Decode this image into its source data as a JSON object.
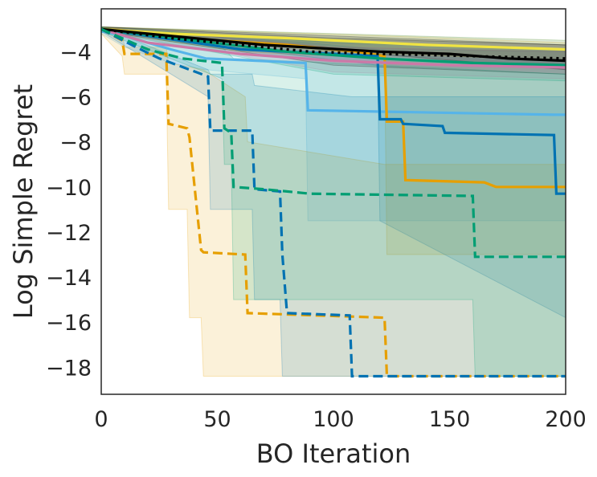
{
  "chart_data": {
    "type": "line",
    "title": "",
    "xlabel": "BO Iteration",
    "ylabel": "Log Simple Regret",
    "xlim": [
      0,
      200
    ],
    "ylim": [
      -19.2,
      -2.1
    ],
    "xticks": [
      0,
      50,
      100,
      150,
      200
    ],
    "yticks": [
      -4,
      -6,
      -8,
      -10,
      -12,
      -14,
      -16,
      -18
    ],
    "x_tick_labels": [
      "0",
      "50",
      "100",
      "150",
      "200"
    ],
    "y_tick_labels": [
      "−4",
      "−6",
      "−8",
      "−10",
      "−12",
      "−14",
      "−16",
      "−18"
    ],
    "grid": false,
    "legend": "none",
    "series": [
      {
        "color": "#56B4E9",
        "style": "solid",
        "points": [
          [
            0,
            -3.1
          ],
          [
            10,
            -3.3
          ],
          [
            30,
            -3.9
          ],
          [
            45,
            -4.3
          ],
          [
            88,
            -4.5
          ],
          [
            89,
            -6.6
          ],
          [
            195,
            -6.8
          ],
          [
            200,
            -6.8
          ]
        ],
        "band_low": [
          [
            0,
            -3.2
          ],
          [
            10,
            -3.8
          ],
          [
            30,
            -4.5
          ],
          [
            45,
            -4.8
          ],
          [
            88,
            -5.2
          ],
          [
            89,
            -11.5
          ],
          [
            200,
            -11.5
          ]
        ],
        "band_high": [
          [
            0,
            -3.0
          ],
          [
            30,
            -3.2
          ],
          [
            88,
            -3.6
          ],
          [
            120,
            -3.9
          ],
          [
            200,
            -4.0
          ]
        ]
      },
      {
        "color": "#E69F00",
        "style": "solid",
        "points": [
          [
            0,
            -3.0
          ],
          [
            20,
            -3.2
          ],
          [
            50,
            -3.5
          ],
          [
            80,
            -3.7
          ],
          [
            110,
            -4.0
          ],
          [
            122,
            -4.2
          ],
          [
            123,
            -7.1
          ],
          [
            130,
            -7.1
          ],
          [
            131,
            -9.7
          ],
          [
            165,
            -9.8
          ],
          [
            170,
            -10.0
          ],
          [
            200,
            -10.0
          ]
        ],
        "band_low": [
          [
            0,
            -3.1
          ],
          [
            60,
            -4.0
          ],
          [
            122,
            -4.3
          ],
          [
            123,
            -13.0
          ],
          [
            200,
            -13.0
          ]
        ],
        "band_high": [
          [
            0,
            -2.9
          ],
          [
            60,
            -3.1
          ],
          [
            122,
            -3.3
          ],
          [
            200,
            -3.6
          ]
        ]
      },
      {
        "color": "#0072B2",
        "style": "solid",
        "points": [
          [
            0,
            -3.0
          ],
          [
            20,
            -3.3
          ],
          [
            60,
            -3.9
          ],
          [
            100,
            -4.1
          ],
          [
            119,
            -4.2
          ],
          [
            120,
            -7.0
          ],
          [
            129,
            -7.0
          ],
          [
            130,
            -7.2
          ],
          [
            147,
            -7.3
          ],
          [
            148,
            -7.6
          ],
          [
            195,
            -7.7
          ],
          [
            196,
            -10.3
          ],
          [
            200,
            -10.3
          ]
        ],
        "band_low": [
          [
            0,
            -3.1
          ],
          [
            119,
            -4.6
          ],
          [
            120,
            -11.5
          ],
          [
            200,
            -15.8
          ]
        ],
        "band_high": [
          [
            0,
            -2.9
          ],
          [
            100,
            -3.2
          ],
          [
            200,
            -3.5
          ]
        ]
      },
      {
        "color": "#009E73",
        "style": "solid",
        "points": [
          [
            0,
            -3.0
          ],
          [
            40,
            -3.5
          ],
          [
            80,
            -4.0
          ],
          [
            120,
            -4.3
          ],
          [
            160,
            -4.5
          ],
          [
            200,
            -4.6
          ]
        ],
        "band_low": [
          [
            0,
            -3.1
          ],
          [
            100,
            -5.0
          ],
          [
            200,
            -5.3
          ]
        ],
        "band_high": [
          [
            0,
            -2.9
          ],
          [
            100,
            -3.6
          ],
          [
            200,
            -3.9
          ]
        ]
      },
      {
        "color": "#F0E442",
        "style": "solid",
        "points": [
          [
            0,
            -3.0
          ],
          [
            30,
            -3.2
          ],
          [
            80,
            -3.4
          ],
          [
            140,
            -3.7
          ],
          [
            200,
            -3.9
          ]
        ],
        "band_low": [
          [
            0,
            -3.1
          ],
          [
            100,
            -4.0
          ],
          [
            200,
            -4.4
          ]
        ],
        "band_high": [
          [
            0,
            -2.9
          ],
          [
            100,
            -3.2
          ],
          [
            200,
            -3.5
          ]
        ]
      },
      {
        "color": "#CC79A7",
        "style": "solid",
        "points": [
          [
            0,
            -3.0
          ],
          [
            20,
            -3.6
          ],
          [
            60,
            -4.1
          ],
          [
            100,
            -4.4
          ],
          [
            150,
            -4.6
          ],
          [
            200,
            -4.7
          ]
        ],
        "band_low": [
          [
            0,
            -3.1
          ],
          [
            100,
            -4.9
          ],
          [
            200,
            -5.2
          ]
        ],
        "band_high": [
          [
            0,
            -2.9
          ],
          [
            100,
            -3.8
          ],
          [
            200,
            -4.0
          ]
        ]
      },
      {
        "color": "#000000",
        "style": "solid",
        "points": [
          [
            0,
            -3.0
          ],
          [
            30,
            -3.3
          ],
          [
            70,
            -3.7
          ],
          [
            120,
            -4.0
          ],
          [
            150,
            -4.1
          ],
          [
            175,
            -4.3
          ],
          [
            200,
            -4.4
          ]
        ],
        "band_low": [
          [
            0,
            -3.1
          ],
          [
            100,
            -4.6
          ],
          [
            200,
            -5.0
          ]
        ],
        "band_high": [
          [
            0,
            -2.9
          ],
          [
            100,
            -3.4
          ],
          [
            200,
            -3.7
          ]
        ]
      },
      {
        "color": "#000000",
        "style": "dotted",
        "points": [
          [
            0,
            -3.0
          ],
          [
            30,
            -3.4
          ],
          [
            70,
            -3.8
          ],
          [
            90,
            -4.0
          ],
          [
            120,
            -4.1
          ],
          [
            160,
            -4.2
          ],
          [
            200,
            -4.3
          ]
        ],
        "band_low": [
          [
            0,
            -3.1
          ],
          [
            200,
            -4.8
          ]
        ],
        "band_high": [
          [
            0,
            -2.9
          ],
          [
            200,
            -3.7
          ]
        ]
      },
      {
        "color": "#E69F00",
        "style": "dashed",
        "points": [
          [
            0,
            -3.0
          ],
          [
            9,
            -3.5
          ],
          [
            10,
            -4.1
          ],
          [
            28,
            -4.1
          ],
          [
            29,
            -7.2
          ],
          [
            37,
            -7.4
          ],
          [
            38,
            -7.8
          ],
          [
            43,
            -12.8
          ],
          [
            44,
            -12.9
          ],
          [
            62,
            -13.0
          ],
          [
            63,
            -15.6
          ],
          [
            122,
            -15.8
          ],
          [
            123,
            -18.4
          ],
          [
            200,
            -18.4
          ]
        ],
        "band_low": [
          [
            0,
            -3.2
          ],
          [
            9,
            -4.2
          ],
          [
            10,
            -5.0
          ],
          [
            28,
            -5.0
          ],
          [
            29,
            -11.0
          ],
          [
            37,
            -11.0
          ],
          [
            38,
            -15.8
          ],
          [
            43,
            -15.8
          ],
          [
            44,
            -18.4
          ],
          [
            200,
            -18.4
          ]
        ],
        "band_high": [
          [
            0,
            -2.9
          ],
          [
            9,
            -3.0
          ],
          [
            10,
            -3.8
          ],
          [
            28,
            -3.8
          ],
          [
            29,
            -4.5
          ],
          [
            44,
            -4.8
          ],
          [
            62,
            -6.0
          ],
          [
            63,
            -8.0
          ],
          [
            122,
            -9.0
          ],
          [
            200,
            -9.0
          ]
        ]
      },
      {
        "color": "#0072B2",
        "style": "dashed",
        "points": [
          [
            0,
            -3.0
          ],
          [
            15,
            -3.8
          ],
          [
            25,
            -4.3
          ],
          [
            46,
            -5.1
          ],
          [
            47,
            -7.5
          ],
          [
            65,
            -7.5
          ],
          [
            66,
            -10.1
          ],
          [
            77,
            -10.2
          ],
          [
            78,
            -13.0
          ],
          [
            80,
            -15.6
          ],
          [
            107,
            -15.7
          ],
          [
            108,
            -18.4
          ],
          [
            200,
            -18.4
          ]
        ],
        "band_low": [
          [
            0,
            -3.1
          ],
          [
            46,
            -6.0
          ],
          [
            47,
            -11.0
          ],
          [
            65,
            -11.0
          ],
          [
            66,
            -15.0
          ],
          [
            77,
            -15.0
          ],
          [
            78,
            -18.4
          ],
          [
            200,
            -18.4
          ]
        ],
        "band_high": [
          [
            0,
            -2.9
          ],
          [
            46,
            -4.8
          ],
          [
            47,
            -5.0
          ],
          [
            65,
            -5.0
          ],
          [
            66,
            -5.5
          ],
          [
            108,
            -6.0
          ],
          [
            200,
            -6.0
          ]
        ]
      },
      {
        "color": "#009E73",
        "style": "dashed",
        "points": [
          [
            0,
            -3.0
          ],
          [
            20,
            -3.9
          ],
          [
            35,
            -4.3
          ],
          [
            52,
            -4.5
          ],
          [
            53,
            -7.4
          ],
          [
            56,
            -7.6
          ],
          [
            57,
            -10.0
          ],
          [
            70,
            -10.1
          ],
          [
            90,
            -10.3
          ],
          [
            160,
            -10.4
          ],
          [
            161,
            -13.1
          ],
          [
            200,
            -13.1
          ]
        ],
        "band_low": [
          [
            0,
            -3.1
          ],
          [
            52,
            -5.2
          ],
          [
            53,
            -9.0
          ],
          [
            56,
            -9.0
          ],
          [
            57,
            -15.0
          ],
          [
            160,
            -15.0
          ],
          [
            161,
            -18.4
          ],
          [
            200,
            -18.4
          ]
        ],
        "band_high": [
          [
            0,
            -2.9
          ],
          [
            52,
            -3.8
          ],
          [
            57,
            -4.3
          ],
          [
            160,
            -4.8
          ],
          [
            200,
            -5.0
          ]
        ]
      }
    ]
  }
}
